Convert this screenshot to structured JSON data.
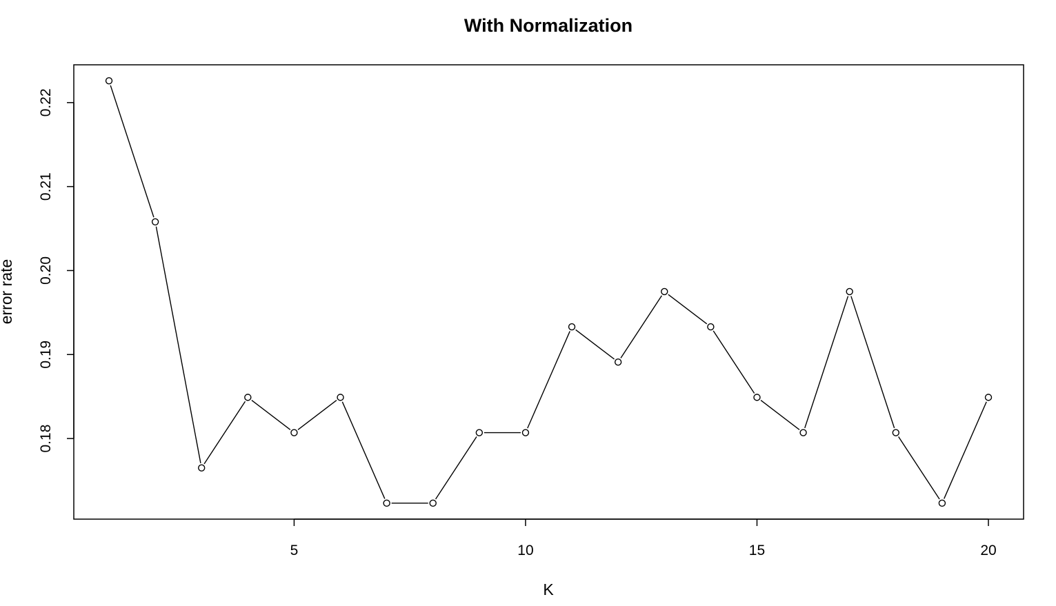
{
  "chart_data": {
    "type": "line",
    "title": "With Normalization",
    "xlabel": "K",
    "ylabel": "error rate",
    "x": [
      1,
      2,
      3,
      4,
      5,
      6,
      7,
      8,
      9,
      10,
      11,
      12,
      13,
      14,
      15,
      16,
      17,
      18,
      19,
      20
    ],
    "y": [
      0.2226,
      0.2058,
      0.1765,
      0.1849,
      0.1807,
      0.1849,
      0.1723,
      0.1723,
      0.1807,
      0.1807,
      0.1933,
      0.1891,
      0.1975,
      0.1933,
      0.1849,
      0.1807,
      0.1975,
      0.1807,
      0.1723,
      0.1849
    ],
    "xlim": [
      0.24,
      20.76
    ],
    "ylim": [
      0.1704,
      0.2245
    ],
    "xticks": [
      5,
      10,
      15,
      20
    ],
    "xtick_labels": [
      "5",
      "10",
      "15",
      "20"
    ],
    "yticks": [
      0.18,
      0.19,
      0.2,
      0.21,
      0.22
    ],
    "ytick_labels": [
      "0.18",
      "0.19",
      "0.20",
      "0.21",
      "0.22"
    ],
    "grid": false,
    "marker": "open-circle",
    "line_color": "#000000"
  }
}
